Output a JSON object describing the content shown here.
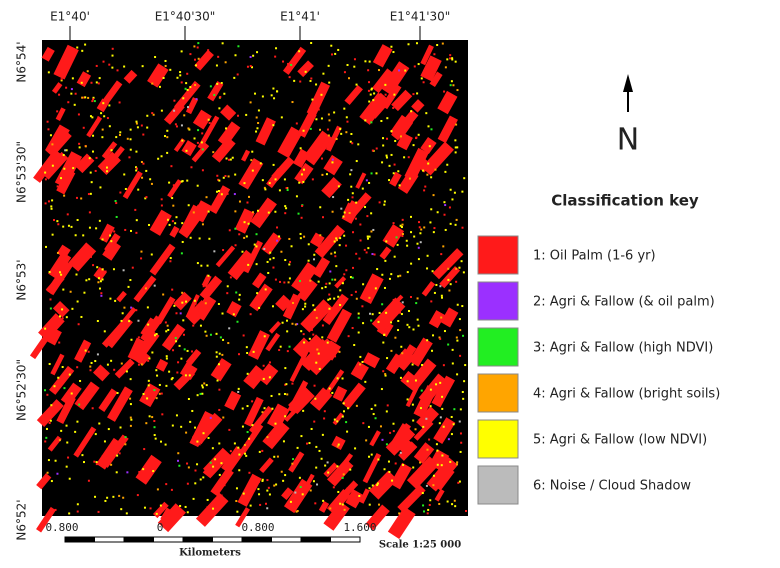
{
  "map": {
    "longitude_labels": [
      "E1°40'",
      "E1°40'30\"",
      "E1°41'",
      "E1°41'30\""
    ],
    "latitude_labels": [
      "N6°54'",
      "N6°53'30\"",
      "N6°53'",
      "N6°52'30\"",
      "N6°52'"
    ],
    "scale": {
      "ticks": [
        "0.800",
        "0",
        "0.800",
        "1.600"
      ],
      "unit": "Kilometers",
      "ratio": "Scale 1:25 000"
    },
    "north": "N"
  },
  "legend": {
    "title": "Classification key",
    "items": [
      {
        "label": "1: Oil Palm (1-6 yr)",
        "color": "#ff1a1a"
      },
      {
        "label": "2: Agri & Fallow (& oil palm)",
        "color": "#9b30ff"
      },
      {
        "label": "3: Agri & Fallow (high NDVI)",
        "color": "#22ee22"
      },
      {
        "label": "4: Agri & Fallow (bright soils)",
        "color": "#ffa500"
      },
      {
        "label": "5: Agri & Fallow (low NDVI)",
        "color": "#ffff00"
      },
      {
        "label": "6: Noise / Cloud Shadow",
        "color": "#bbbbbb"
      }
    ]
  }
}
